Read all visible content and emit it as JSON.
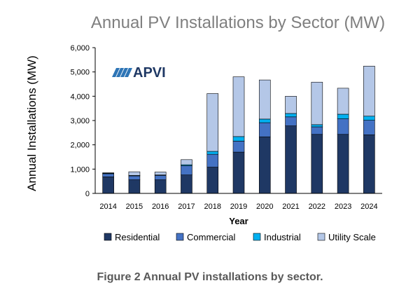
{
  "chart_data": {
    "type": "bar",
    "stacked": true,
    "title": "Annual PV Installations by Sector (MW)",
    "xlabel": "Year",
    "ylabel": "Annual Installations (MW)",
    "ylim": [
      0,
      6000
    ],
    "yticks": [
      0,
      1000,
      2000,
      3000,
      4000,
      5000,
      6000
    ],
    "ytick_labels": [
      "0",
      "1,000",
      "2,000",
      "3,000",
      "4,000",
      "5,000",
      "6,000"
    ],
    "categories": [
      "2014",
      "2015",
      "2016",
      "2017",
      "2018",
      "2019",
      "2020",
      "2021",
      "2022",
      "2023",
      "2024"
    ],
    "series": [
      {
        "name": "Residential",
        "color": "#1f3864",
        "values": [
          680,
          560,
          560,
          760,
          1080,
          1700,
          2330,
          2780,
          2430,
          2430,
          2410
        ]
      },
      {
        "name": "Commercial",
        "color": "#4472c4",
        "values": [
          130,
          160,
          180,
          380,
          530,
          450,
          580,
          370,
          310,
          640,
          600
        ]
      },
      {
        "name": "Industrial",
        "color": "#00b0f0",
        "values": [
          20,
          20,
          20,
          40,
          120,
          190,
          150,
          140,
          90,
          190,
          170
        ]
      },
      {
        "name": "Utility Scale",
        "color": "#b4c7e7",
        "values": [
          20,
          150,
          120,
          210,
          2380,
          2460,
          1610,
          710,
          1750,
          1070,
          2060
        ]
      }
    ],
    "legend_position": "bottom"
  },
  "logo": {
    "text": "APVI"
  },
  "caption": "Figure 2 Annual PV installations by sector."
}
